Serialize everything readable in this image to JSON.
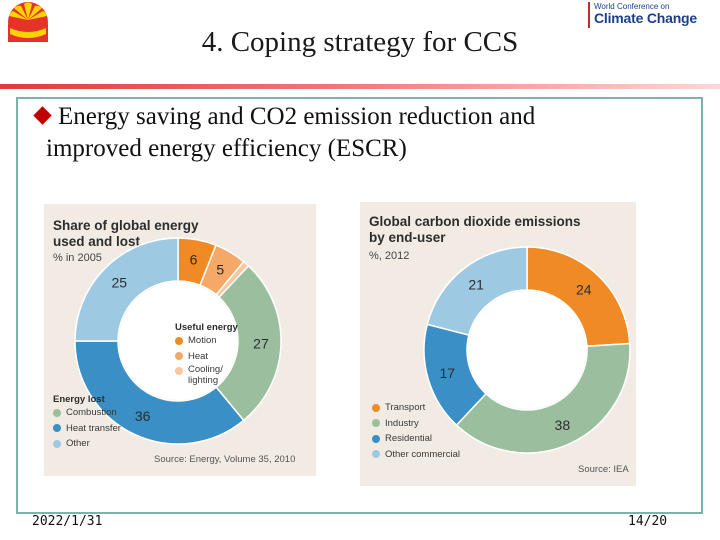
{
  "header": {
    "title": "4. Coping strategy for CCS",
    "wcc_line1": "World Conference on",
    "wcc_line2": "Climate Change"
  },
  "bullet": {
    "line1": "Energy saving and CO2 emission reduction and",
    "line2": "improved energy efficiency (ESCR)"
  },
  "colors": {
    "orange": "#f08a24",
    "light_orange": "#f5a868",
    "peach": "#f9c79f",
    "green": "#9bbf9e",
    "blue": "#3a8fc7",
    "light_blue": "#9ec9e3",
    "accent_red": "#c00000"
  },
  "chart_data": [
    {
      "type": "pie",
      "title_line1": "Share of global energy",
      "title_line2": "used and lost",
      "subtitle": "% in 2005",
      "source": "Source: Energy, Volume 35, 2010",
      "slices": [
        {
          "label": "Motion",
          "group": "Useful energy",
          "value": 6,
          "color": "#f08a24"
        },
        {
          "label": "Heat",
          "group": "Useful energy",
          "value": 5,
          "color": "#f5a868"
        },
        {
          "label": "Cooling/ lighting",
          "group": "Useful energy",
          "value": 1,
          "color": "#f9c79f"
        },
        {
          "label": "Combustion",
          "group": "Energy lost",
          "value": 27,
          "color": "#9bbf9e"
        },
        {
          "label": "Heat transfer",
          "group": "Energy lost",
          "value": 36,
          "color": "#3a8fc7"
        },
        {
          "label": "Other",
          "group": "Energy lost",
          "value": 25,
          "color": "#9ec9e3"
        }
      ],
      "legend_useful_title": "Useful energy",
      "legend_useful": [
        {
          "label": "Motion",
          "color": "#f08a24"
        },
        {
          "label": "Heat",
          "color": "#f5a868"
        },
        {
          "label": "Cooling/",
          "label2": "lighting",
          "color": "#f9c79f"
        }
      ],
      "legend_lost_title": "Energy lost",
      "legend_lost": [
        {
          "label": "Combustion",
          "color": "#9bbf9e"
        },
        {
          "label": "Heat transfer",
          "color": "#3a8fc7"
        },
        {
          "label": "Other",
          "color": "#9ec9e3"
        }
      ]
    },
    {
      "type": "pie",
      "title_line1": "Global carbon dioxide emissions",
      "title_line2": "by end-user",
      "subtitle": "%, 2012",
      "source": "Source: IEA",
      "slices": [
        {
          "label": "Transport",
          "value": 24,
          "color": "#f08a24"
        },
        {
          "label": "Industry",
          "value": 38,
          "color": "#9bbf9e"
        },
        {
          "label": "Residential",
          "value": 17,
          "color": "#3a8fc7"
        },
        {
          "label": "Other commercial",
          "value": 21,
          "color": "#9ec9e3"
        }
      ]
    }
  ],
  "footer": {
    "date": "2022/1/31",
    "page": "14/20"
  }
}
